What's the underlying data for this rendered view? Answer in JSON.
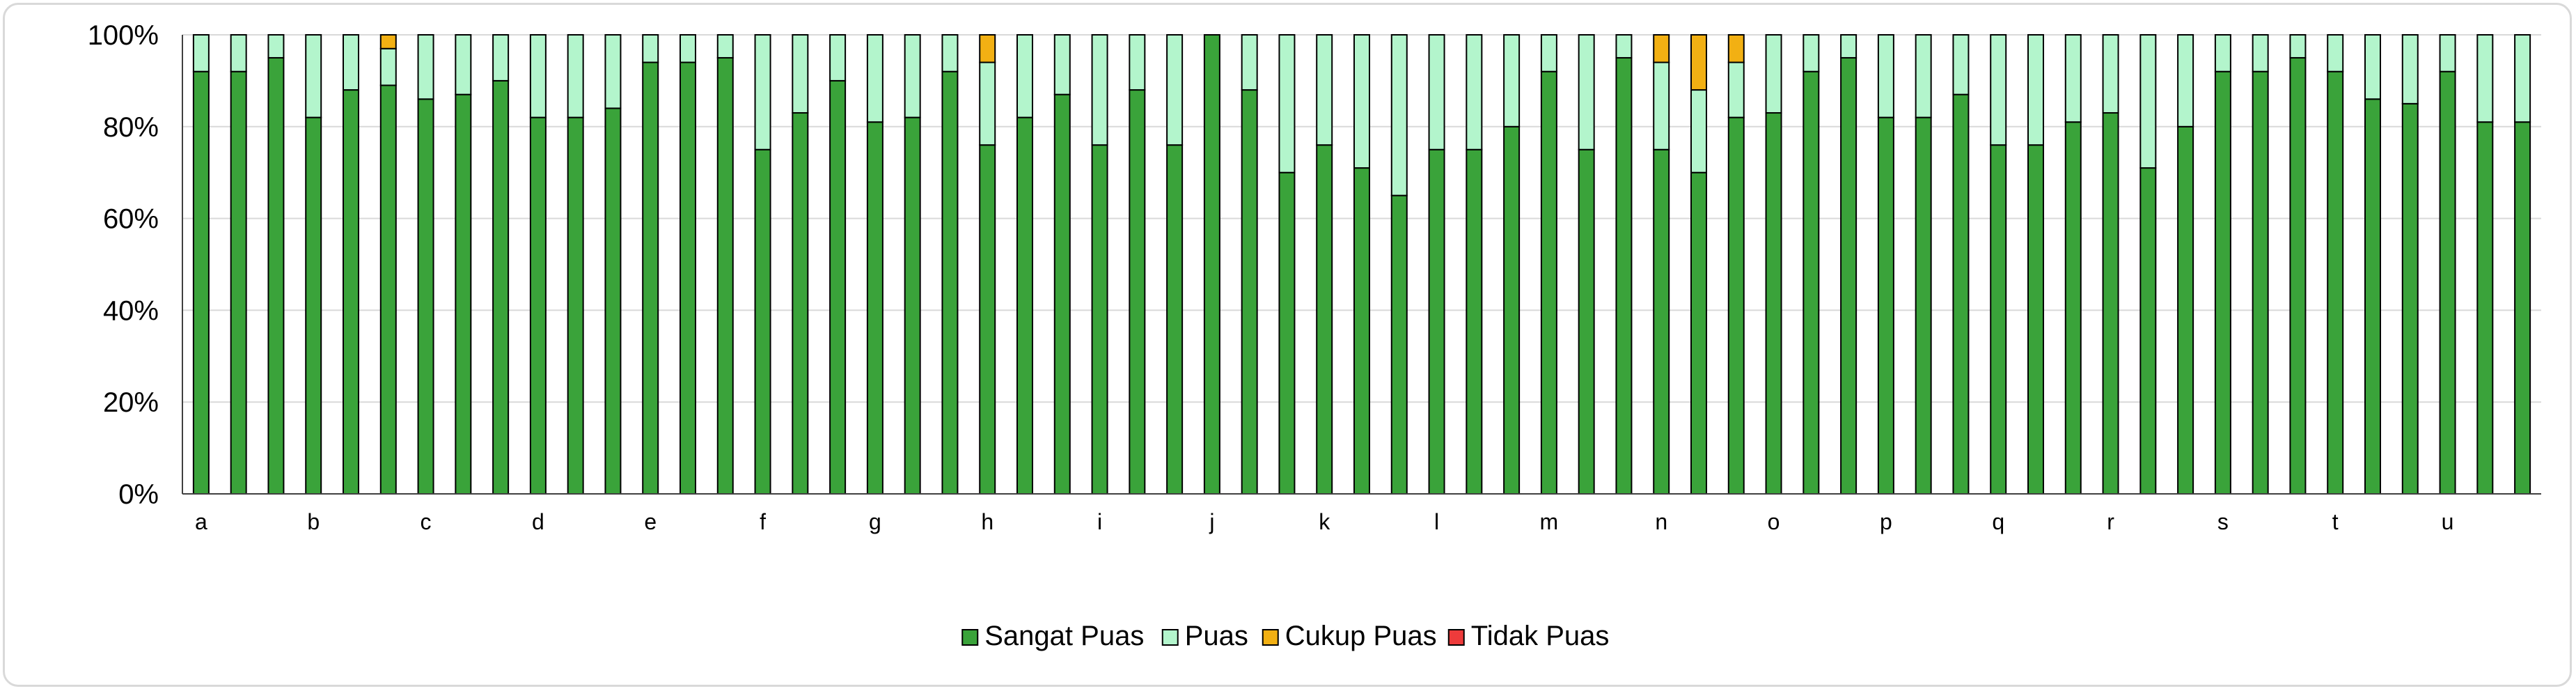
{
  "chart_data": {
    "type": "bar",
    "stacked": "percent",
    "ylim": [
      0,
      100
    ],
    "y_ticks": [
      "0%",
      "20%",
      "40%",
      "60%",
      "80%",
      "100%"
    ],
    "grid": true,
    "legend_position": "bottom",
    "category_labels": [
      "a",
      "b",
      "c",
      "d",
      "e",
      "f",
      "g",
      "h",
      "i",
      "j",
      "k",
      "l",
      "m",
      "n",
      "o",
      "p",
      "q",
      "r",
      "s",
      "t",
      "u"
    ],
    "bars_per_category": 3,
    "series": [
      {
        "name": "Sangat Puas",
        "color": "#3aa33a",
        "values": [
          92,
          92,
          95,
          82,
          88,
          89,
          86,
          87,
          90,
          82,
          82,
          84,
          94,
          94,
          95,
          75,
          83,
          90,
          81,
          82,
          92,
          76,
          82,
          87,
          76,
          88,
          76,
          100,
          88,
          70,
          76,
          71,
          65,
          75,
          75,
          80,
          92,
          75,
          95,
          75,
          70,
          82,
          83,
          92,
          95,
          82,
          82,
          87,
          76,
          76,
          81,
          83,
          71,
          80,
          92,
          92,
          95,
          92,
          86,
          85,
          92,
          81,
          81
        ]
      },
      {
        "name": "Puas",
        "color": "#b3f5cc",
        "values": [
          8,
          8,
          5,
          18,
          12,
          8,
          14,
          13,
          10,
          18,
          18,
          16,
          6,
          6,
          5,
          25,
          17,
          10,
          19,
          18,
          8,
          18,
          18,
          13,
          24,
          12,
          24,
          0,
          12,
          30,
          24,
          29,
          35,
          25,
          25,
          20,
          8,
          25,
          5,
          19,
          18,
          12,
          17,
          8,
          5,
          18,
          18,
          13,
          24,
          24,
          19,
          17,
          29,
          20,
          8,
          8,
          5,
          8,
          14,
          15,
          8,
          19,
          19
        ]
      },
      {
        "name": "Cukup Puas",
        "color": "#f2b013",
        "values": [
          0,
          0,
          0,
          0,
          0,
          3,
          0,
          0,
          0,
          0,
          0,
          0,
          0,
          0,
          0,
          0,
          0,
          0,
          0,
          0,
          0,
          6,
          0,
          0,
          0,
          0,
          0,
          0,
          0,
          0,
          0,
          0,
          0,
          0,
          0,
          0,
          0,
          0,
          0,
          6,
          12,
          6,
          0,
          0,
          0,
          0,
          0,
          0,
          0,
          0,
          0,
          0,
          0,
          0,
          0,
          0,
          0,
          0,
          0,
          0,
          0,
          0,
          0
        ]
      },
      {
        "name": "Tidak Puas",
        "color": "#ee3b3b",
        "values": [
          0,
          0,
          0,
          0,
          0,
          0,
          0,
          0,
          0,
          0,
          0,
          0,
          0,
          0,
          0,
          0,
          0,
          0,
          0,
          0,
          0,
          0,
          0,
          0,
          0,
          0,
          0,
          0,
          0,
          0,
          0,
          0,
          0,
          0,
          0,
          0,
          0,
          0,
          0,
          0,
          0,
          0,
          0,
          0,
          0,
          0,
          0,
          0,
          0,
          0,
          0,
          0,
          0,
          0,
          0,
          0,
          0,
          0,
          0,
          0,
          0,
          0,
          0
        ]
      }
    ]
  }
}
